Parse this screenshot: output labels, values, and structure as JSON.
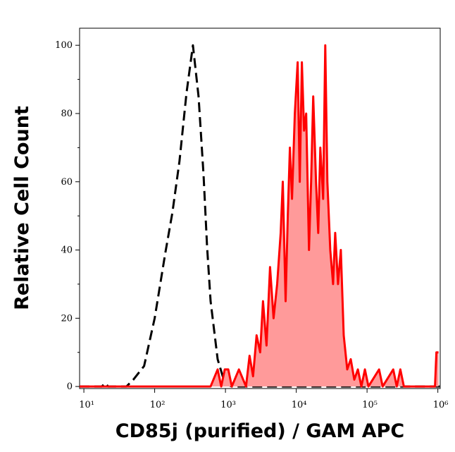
{
  "chart_data": {
    "type": "histogram-overlay",
    "xlabel": "CD85j (purified) / GAM APC",
    "ylabel": "Relative Cell Count",
    "xscale": "log",
    "xlim": [
      8.7,
      1080000
    ],
    "ylim": [
      -0.6,
      105
    ],
    "xticks": [
      {
        "value": 10,
        "label": "10¹"
      },
      {
        "value": 100,
        "label": "10²"
      },
      {
        "value": 1000,
        "label": "10³"
      },
      {
        "value": 10000,
        "label": "10⁴"
      },
      {
        "value": 100000,
        "label": "10⁵"
      },
      {
        "value": 1000000,
        "label": "10⁶"
      }
    ],
    "yticks": [
      0,
      20,
      40,
      60,
      80,
      100
    ],
    "yminorticks": [
      10,
      30,
      50,
      70,
      90
    ],
    "series": [
      {
        "color": "#000000",
        "style": "dashed",
        "fill": null,
        "x": [
          8.7,
          18,
          20,
          22,
          40,
          50,
          71,
          100,
          141,
          178,
          224,
          282,
          347,
          417,
          490,
          550,
          617,
          776,
          977,
          1230,
          1080000
        ],
        "values": [
          0,
          0,
          1,
          0,
          0,
          2,
          6,
          20,
          39,
          51,
          66,
          86,
          100,
          85,
          62,
          41,
          25,
          8,
          1,
          0,
          0
        ]
      },
      {
        "color": "#ff0000",
        "style": "solid",
        "fill": "#ff9a9a",
        "x": [
          8.7,
          617,
          776,
          871,
          977,
          1096,
          1230,
          1549,
          1950,
          2188,
          2455,
          2754,
          3090,
          3388,
          3802,
          4266,
          4786,
          5370,
          6026,
          6457,
          7079,
          7586,
          8128,
          8710,
          9550,
          10470,
          11220,
          12020,
          12880,
          13800,
          15140,
          16220,
          17380,
          19050,
          20420,
          21880,
          23990,
          25700,
          27540,
          30200,
          33110,
          35480,
          38900,
          42660,
          46770,
          52480,
          58880,
          66070,
          74130,
          83180,
          93330,
          104700,
          147900,
          166000,
          234400,
          263000,
          295100,
          331100,
          912000,
          955000,
          1023000
        ],
        "values": [
          0,
          0,
          5,
          0,
          5,
          5,
          0,
          5,
          0,
          9,
          3,
          15,
          10,
          25,
          12,
          35,
          20,
          30,
          45,
          60,
          25,
          50,
          70,
          55,
          80,
          95,
          60,
          95,
          75,
          80,
          40,
          60,
          85,
          60,
          45,
          70,
          55,
          100,
          60,
          40,
          30,
          45,
          30,
          40,
          15,
          5,
          8,
          2,
          5,
          0,
          5,
          0,
          5,
          0,
          5,
          0,
          5,
          0,
          0,
          10,
          10
        ]
      }
    ]
  }
}
